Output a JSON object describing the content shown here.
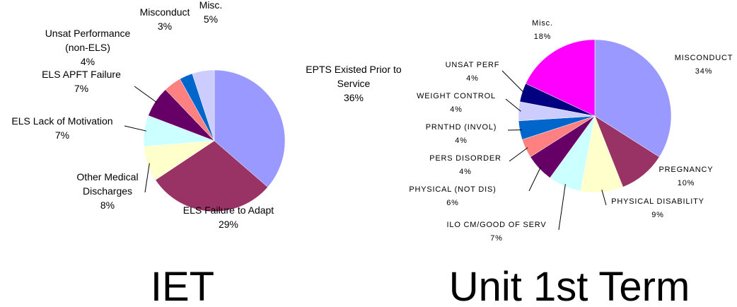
{
  "chart_data": [
    {
      "type": "pie",
      "title": "IET",
      "categories": [
        "EPTS Existed Prior to\nService",
        "ELS Failure to Adapt",
        "Other Medical\nDischarges",
        "ELS Lack of Motivation",
        "ELS APFT Failure",
        "Unsat Performance\n(non-ELS)",
        "Misconduct",
        "Misc."
      ],
      "values": [
        36,
        29,
        8,
        7,
        7,
        4,
        3,
        5
      ],
      "value_labels": [
        "36%",
        "29%",
        "8%",
        "7%",
        "7%",
        "4%",
        "3%",
        "5%"
      ],
      "colors": [
        "#9999ff",
        "#993366",
        "#ffffcc",
        "#ccffff",
        "#660066",
        "#ff8080",
        "#0066cc",
        "#ccccff"
      ]
    },
    {
      "type": "pie",
      "title": "Unit 1st Term",
      "categories": [
        "MISCONDUCT",
        "PREGNANCY",
        "PHYSICAL DISABILITY",
        "ILO CM/GOOD OF SERV",
        "PHYSICAL (NOT DIS)",
        "PERS DISORDER",
        "PRNTHD (INVOL)",
        "WEIGHT CONTROL",
        "UNSAT PERF",
        "Misc."
      ],
      "values": [
        34,
        10,
        9,
        7,
        6,
        4,
        4,
        4,
        4,
        18
      ],
      "value_labels": [
        "34%",
        "10%",
        "9%",
        "7%",
        "6%",
        "4%",
        "4%",
        "4%",
        "4%",
        "18%"
      ],
      "colors": [
        "#9999ff",
        "#993366",
        "#ffffcc",
        "#ccffff",
        "#660066",
        "#ff8080",
        "#0066cc",
        "#ccccff",
        "#000080",
        "#ff00ff"
      ]
    }
  ]
}
